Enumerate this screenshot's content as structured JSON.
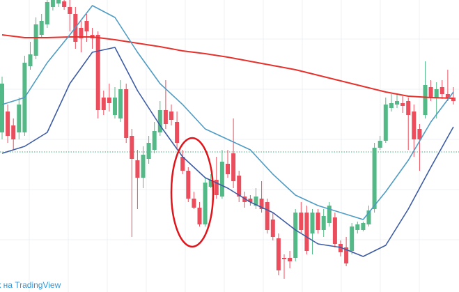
{
  "chart_data": {
    "type": "candlestick",
    "ylim": [
      0,
      419
    ],
    "up_color": "#53b987",
    "down_color": "#eb4d5c",
    "open": [
      229,
      259,
      239,
      229,
      229,
      324,
      339,
      369,
      384,
      409,
      414,
      417,
      409,
      399,
      379,
      389,
      369,
      369,
      279,
      279,
      254,
      249,
      291,
      224,
      189,
      164,
      191,
      204,
      229,
      261,
      259,
      244,
      194,
      174,
      134,
      121,
      97,
      151,
      161,
      137,
      184,
      199,
      167,
      137,
      134,
      124,
      134,
      129,
      104,
      77,
      49,
      49,
      49,
      114,
      114,
      84,
      114,
      89,
      99,
      107,
      69,
      64,
      59,
      89,
      89,
      97,
      119,
      207,
      217,
      264,
      269,
      271,
      274,
      259,
      234,
      254,
      294,
      279,
      294,
      284,
      279
    ],
    "high": [
      309,
      269,
      249,
      279,
      339,
      359,
      394,
      399,
      419,
      419,
      419,
      419,
      419,
      409,
      389,
      399,
      379,
      374,
      289,
      299,
      294,
      304,
      299,
      234,
      204,
      209,
      224,
      244,
      274,
      304,
      269,
      259,
      204,
      179,
      144,
      129,
      164,
      169,
      194,
      204,
      204,
      249,
      174,
      144,
      139,
      149,
      159,
      134,
      114,
      84,
      54,
      59,
      119,
      129,
      124,
      119,
      119,
      119,
      129,
      114,
      74,
      79,
      99,
      101,
      101,
      124,
      214,
      224,
      279,
      284,
      284,
      281,
      279,
      269,
      241,
      331,
      304,
      301,
      304,
      319,
      294
    ],
    "low": [
      219,
      214,
      204,
      219,
      224,
      319,
      334,
      364,
      379,
      404,
      409,
      405,
      374,
      349,
      344,
      359,
      349,
      249,
      254,
      259,
      249,
      244,
      214,
      79,
      119,
      149,
      184,
      199,
      224,
      234,
      239,
      204,
      169,
      129,
      119,
      94,
      94,
      149,
      134,
      134,
      164,
      149,
      129,
      121,
      124,
      119,
      114,
      84,
      74,
      24,
      19,
      34,
      44,
      84,
      54,
      54,
      84,
      79,
      94,
      64,
      51,
      37,
      54,
      84,
      87,
      94,
      114,
      204,
      214,
      259,
      264,
      257,
      204,
      194,
      174,
      249,
      274,
      249,
      277,
      274,
      269
    ],
    "close": [
      299,
      224,
      219,
      269,
      329,
      341,
      384,
      389,
      416,
      419,
      419,
      409,
      399,
      359,
      364,
      374,
      364,
      261,
      261,
      271,
      279,
      291,
      221,
      191,
      164,
      197,
      214,
      231,
      261,
      241,
      247,
      214,
      174,
      134,
      121,
      97,
      157,
      161,
      139,
      187,
      169,
      159,
      137,
      129,
      129,
      137,
      119,
      89,
      79,
      31,
      47,
      44,
      114,
      89,
      59,
      114,
      89,
      109,
      124,
      69,
      57,
      41,
      94,
      97,
      99,
      117,
      207,
      217,
      269,
      271,
      274,
      267,
      254,
      219,
      219,
      297,
      279,
      291,
      284,
      279,
      274
    ],
    "lines": [
      {
        "color": "#e5322d",
        "x": [
          0,
          4,
          8,
          12,
          16,
          20,
          24,
          28,
          32,
          36,
          40,
          44,
          48,
          52,
          56,
          60,
          64,
          68,
          72,
          76,
          80
        ],
        "values": [
          369,
          365,
          365,
          366,
          366,
          362,
          357,
          352,
          346,
          342,
          337,
          331,
          325,
          319,
          311,
          303,
          295,
          287,
          281,
          279,
          278
        ]
      },
      {
        "color": "#4e9bc4",
        "x": [
          0,
          4,
          8,
          12,
          16,
          20,
          24,
          28,
          32,
          36,
          40,
          44,
          48,
          52,
          56,
          60,
          64,
          68,
          72,
          76,
          80
        ],
        "values": [
          269,
          279,
          329,
          369,
          411,
          394,
          344,
          299,
          269,
          234,
          219,
          204,
          169,
          139,
          124,
          114,
          104,
          144,
          189,
          244,
          287
        ]
      },
      {
        "color": "#3c5ba5",
        "x": [
          0,
          4,
          8,
          12,
          16,
          20,
          24,
          28,
          32,
          36,
          40,
          44,
          48,
          52,
          56,
          60,
          64,
          68,
          72,
          76,
          80
        ],
        "values": [
          199,
          209,
          229,
          299,
          344,
          351,
          289,
          239,
          194,
          164,
          149,
          129,
          114,
          89,
          69,
          64,
          51,
          67,
          119,
          179,
          237
        ]
      }
    ],
    "hline": {
      "value": 201,
      "color": "#3fae7c"
    },
    "watermark": "к на TradingView"
  }
}
